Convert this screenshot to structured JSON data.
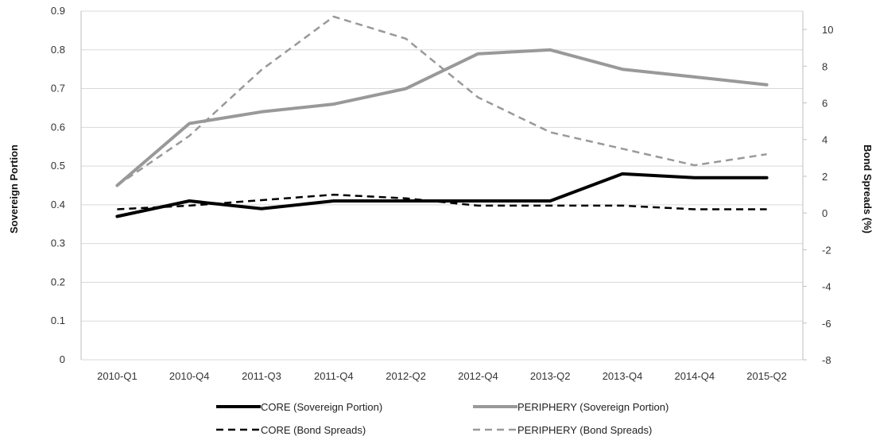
{
  "chart_data": {
    "type": "line",
    "categories": [
      "2010-Q1",
      "2010-Q4",
      "2011-Q3",
      "2011-Q4",
      "2012-Q2",
      "2012-Q4",
      "2013-Q2",
      "2013-Q4",
      "2014-Q4",
      "2015-Q2"
    ],
    "left_axis": {
      "label": "Sovereign Portion",
      "ylim": [
        0,
        0.9
      ],
      "ticks": [
        "0",
        "0.1",
        "0.2",
        "0.3",
        "0.4",
        "0.5",
        "0.6",
        "0.7",
        "0.8",
        "0.9"
      ]
    },
    "right_axis": {
      "label": "Bond Spreads (%)",
      "ylim": [
        -8,
        11
      ],
      "ticks": [
        "-8",
        "-6",
        "-4",
        "-2",
        "0",
        "2",
        "4",
        "6",
        "8",
        "10"
      ]
    },
    "grid": true,
    "legend_position": "bottom",
    "series": [
      {
        "name": "CORE (Sovereign Portion)",
        "axis": "left",
        "color": "#000000",
        "style": "solid",
        "values": [
          0.37,
          0.41,
          0.39,
          0.41,
          0.41,
          0.41,
          0.41,
          0.48,
          0.47,
          0.47
        ]
      },
      {
        "name": "PERIPHERY (Sovereign Portion)",
        "axis": "left",
        "color": "#999999",
        "style": "solid",
        "values": [
          0.45,
          0.61,
          0.64,
          0.66,
          0.7,
          0.79,
          0.8,
          0.75,
          0.73,
          0.71
        ]
      },
      {
        "name": "CORE (Bond Spreads)",
        "axis": "right",
        "color": "#000000",
        "style": "dashed",
        "values": [
          0.2,
          0.4,
          0.7,
          1.0,
          0.8,
          0.4,
          0.4,
          0.4,
          0.2,
          0.2
        ]
      },
      {
        "name": "PERIPHERY (Bond Spreads)",
        "axis": "right",
        "color": "#999999",
        "style": "dashed",
        "values": [
          1.5,
          4.2,
          7.8,
          10.7,
          9.5,
          6.3,
          4.4,
          3.5,
          2.6,
          3.2
        ]
      }
    ]
  }
}
